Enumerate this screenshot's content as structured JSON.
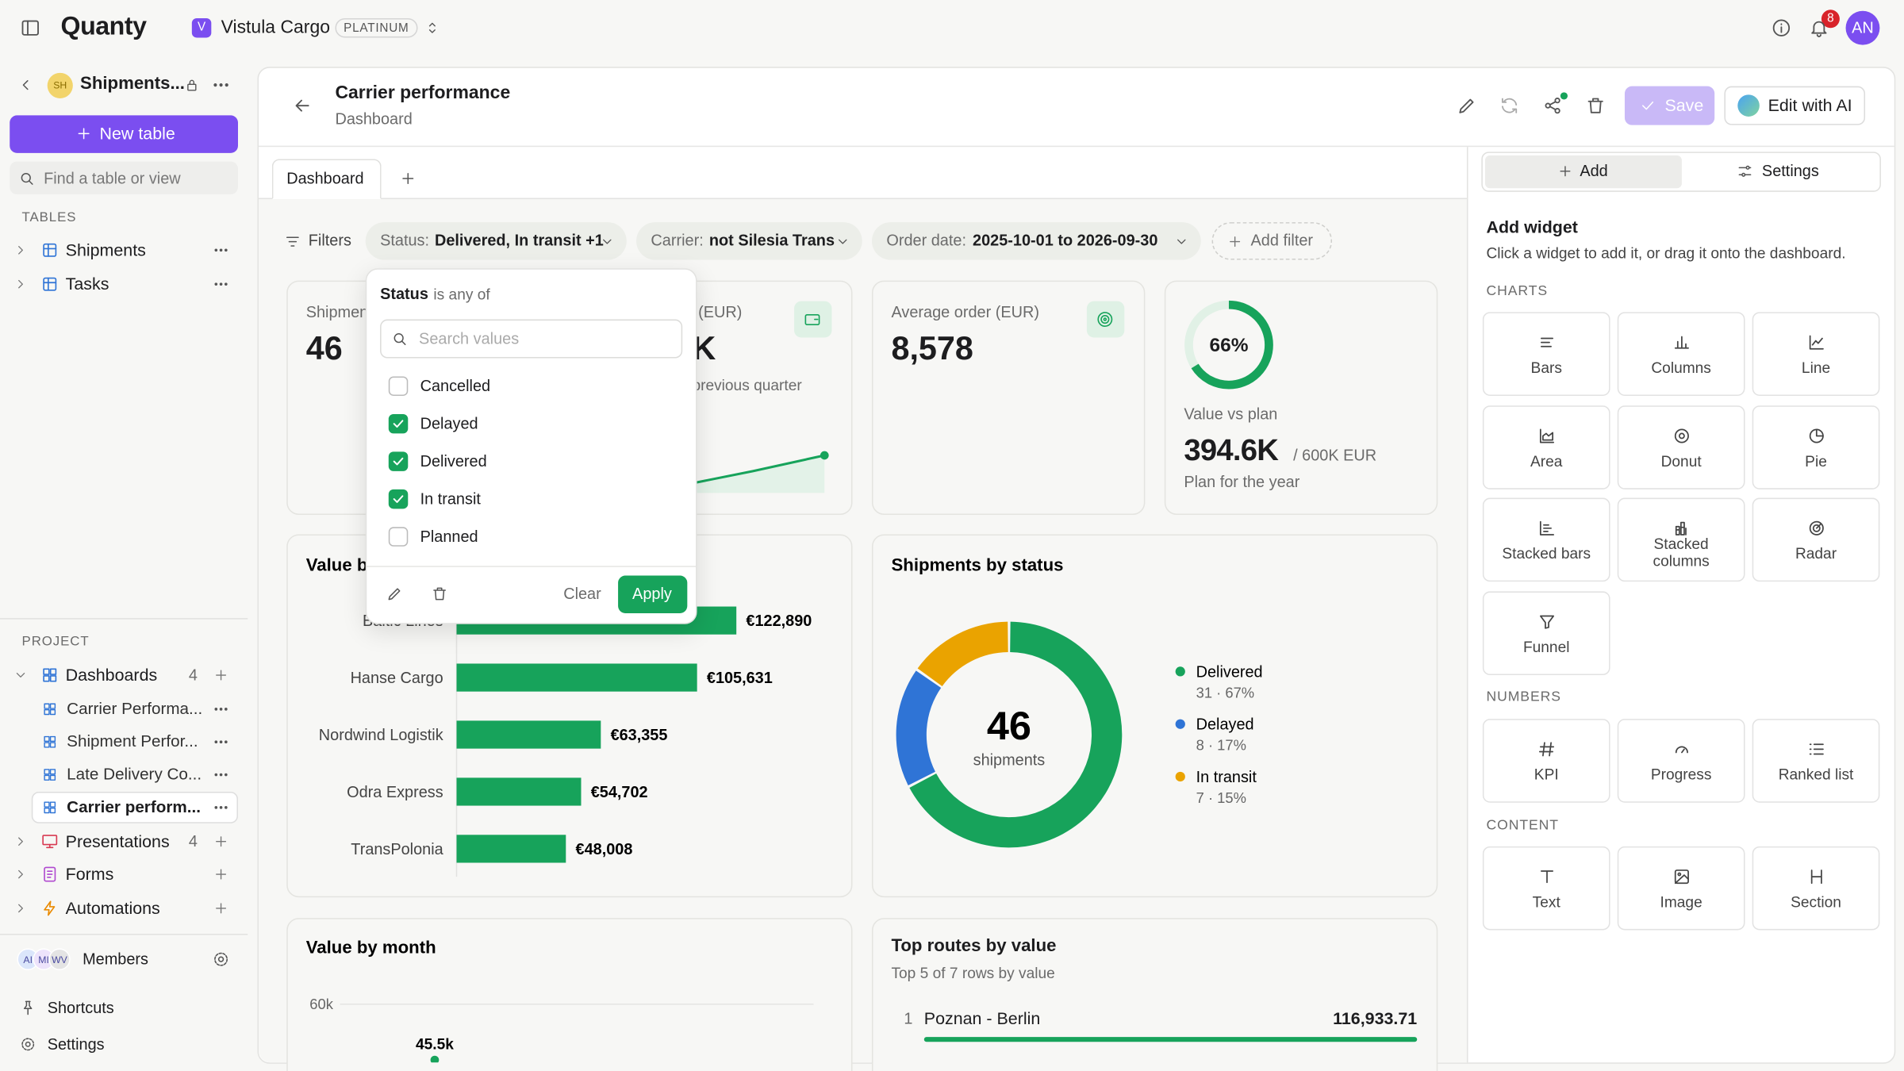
{
  "topbar": {
    "logo": "Quanty",
    "workspace_badge": "V",
    "workspace": "Vistula Cargo",
    "plan": "PLATINUM",
    "notification_count": 8,
    "avatar": "AN"
  },
  "sidebar": {
    "base_badge": "SH",
    "base_name": "Shipments...",
    "new_table": "New table",
    "search_placeholder": "Find a table or view",
    "tables_heading": "TABLES",
    "tables": [
      "Shipments",
      "Tasks"
    ],
    "project_heading": "PROJECT",
    "sections": [
      {
        "label": "Dashboards",
        "count": 4,
        "items": [
          "Carrier Performa...",
          "Shipment Perfor...",
          "Late Delivery Co...",
          "Carrier perform..."
        ]
      },
      {
        "label": "Presentations",
        "count": 4
      },
      {
        "label": "Forms"
      },
      {
        "label": "Automations"
      }
    ],
    "member_avatars": [
      "AI",
      "MI",
      "WV"
    ],
    "members": "Members",
    "shortcuts": "Shortcuts",
    "settings": "Settings"
  },
  "header": {
    "title": "Carrier performance",
    "subtitle": "Dashboard",
    "save": "Save",
    "edit_with_ai": "Edit with AI"
  },
  "tabs": [
    "Dashboard"
  ],
  "filters": {
    "label": "Filters",
    "chips": [
      {
        "field": "Status:",
        "value": "Delivered, In transit +1"
      },
      {
        "field": "Carrier:",
        "value": "not Silesia Trans"
      },
      {
        "field": "Order date:",
        "value": "2025-10-01 to 2026-09-30"
      }
    ],
    "add": "Add filter"
  },
  "status_dropdown": {
    "field": "Status",
    "operator": "is any of",
    "search_placeholder": "Search values",
    "options": [
      {
        "label": "Cancelled",
        "checked": false
      },
      {
        "label": "Delayed",
        "checked": true
      },
      {
        "label": "Delivered",
        "checked": true
      },
      {
        "label": "In transit",
        "checked": true
      },
      {
        "label": "Planned",
        "checked": false
      }
    ],
    "clear": "Clear",
    "apply": "Apply"
  },
  "kpis": [
    {
      "title": "Shipments",
      "value": "46"
    },
    {
      "title": "(EUR)",
      "value": "K",
      "note": "previous quarter"
    },
    {
      "title": "Average order (EUR)",
      "value": "8,578"
    }
  ],
  "plan_card": {
    "progress": 66,
    "progress_label": "66%",
    "title": "Value vs plan",
    "value": "394.6K",
    "target": "/ 600K EUR",
    "note": "Plan for the year"
  },
  "chart_data": [
    {
      "type": "hbar",
      "title": "Value by carrier",
      "categories": [
        "Baltic Lines",
        "Hanse Cargo",
        "Nordwind Logistik",
        "Odra Express",
        "TransPolonia"
      ],
      "values": [
        122890,
        105631,
        63355,
        54702,
        48008
      ],
      "value_labels": [
        "€122,890",
        "€105,631",
        "€63,355",
        "€54,702",
        "€48,008"
      ],
      "color": "#17a35b",
      "xlim": [
        0,
        160000
      ]
    },
    {
      "type": "donut",
      "title": "Shipments by status",
      "categories": [
        "Delivered",
        "Delayed",
        "In transit"
      ],
      "values": [
        31,
        8,
        7
      ],
      "value_labels": [
        "31 · 67%",
        "8 · 17%",
        "7 · 15%"
      ],
      "colors": [
        "#17a35b",
        "#2f74d6",
        "#eaa300"
      ],
      "center_label": "46",
      "center_sublabel": "shipments"
    },
    {
      "type": "line",
      "title": "Value by month",
      "categories": [
        null
      ],
      "values": [
        45500
      ],
      "value_labels": [
        "45.5k"
      ],
      "color": "#17a35b",
      "ylim": [
        0,
        60000
      ],
      "yticks": [
        {
          "value": 60000,
          "label": "60k"
        }
      ],
      "grid": true
    }
  ],
  "top_routes": {
    "title": "Top routes by value",
    "subtitle": "Top 5 of 7 rows by value",
    "rows": [
      {
        "rank": "1",
        "route": "Poznan - Berlin",
        "value": "116,933.71"
      }
    ]
  },
  "widget_panel": {
    "tabs": [
      "Add",
      "Settings"
    ],
    "title": "Add widget",
    "description": "Click a widget to add it, or drag it onto the dashboard.",
    "groups": [
      {
        "heading": "CHARTS",
        "items": [
          "Bars",
          "Columns",
          "Line",
          "Area",
          "Donut",
          "Pie",
          "Stacked bars",
          "Stacked columns",
          "Radar",
          "Funnel"
        ]
      },
      {
        "heading": "NUMBERS",
        "items": [
          "KPI",
          "Progress",
          "Ranked list"
        ]
      },
      {
        "heading": "CONTENT",
        "items": [
          "Text",
          "Image",
          "Section"
        ]
      }
    ]
  }
}
